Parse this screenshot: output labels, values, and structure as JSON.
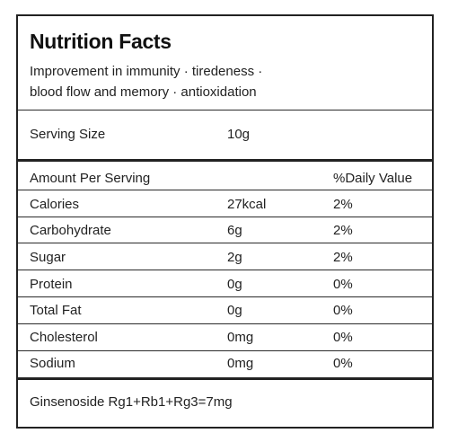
{
  "title": "Nutrition Facts",
  "description": [
    "Improvement in immunity · tiredeness ·",
    "blood flow and memory · antioxidation"
  ],
  "serving": {
    "label": "Serving Size",
    "value": "10g"
  },
  "header": {
    "amount": "Amount Per Serving",
    "daily": "%Daily Value"
  },
  "rows": [
    {
      "name": "Calories",
      "amount": "27kcal",
      "dv": "2%"
    },
    {
      "name": "Carbohydrate",
      "amount": "6g",
      "dv": "2%"
    },
    {
      "name": "Sugar",
      "amount": "2g",
      "dv": "2%"
    },
    {
      "name": "Protein",
      "amount": "0g",
      "dv": "0%"
    },
    {
      "name": "Total Fat",
      "amount": "0g",
      "dv": "0%"
    },
    {
      "name": "Cholesterol",
      "amount": "0mg",
      "dv": "0%"
    },
    {
      "name": "Sodium",
      "amount": "0mg",
      "dv": "0%"
    }
  ],
  "footer": "Ginsenoside Rg1+Rb1+Rg3=7mg"
}
